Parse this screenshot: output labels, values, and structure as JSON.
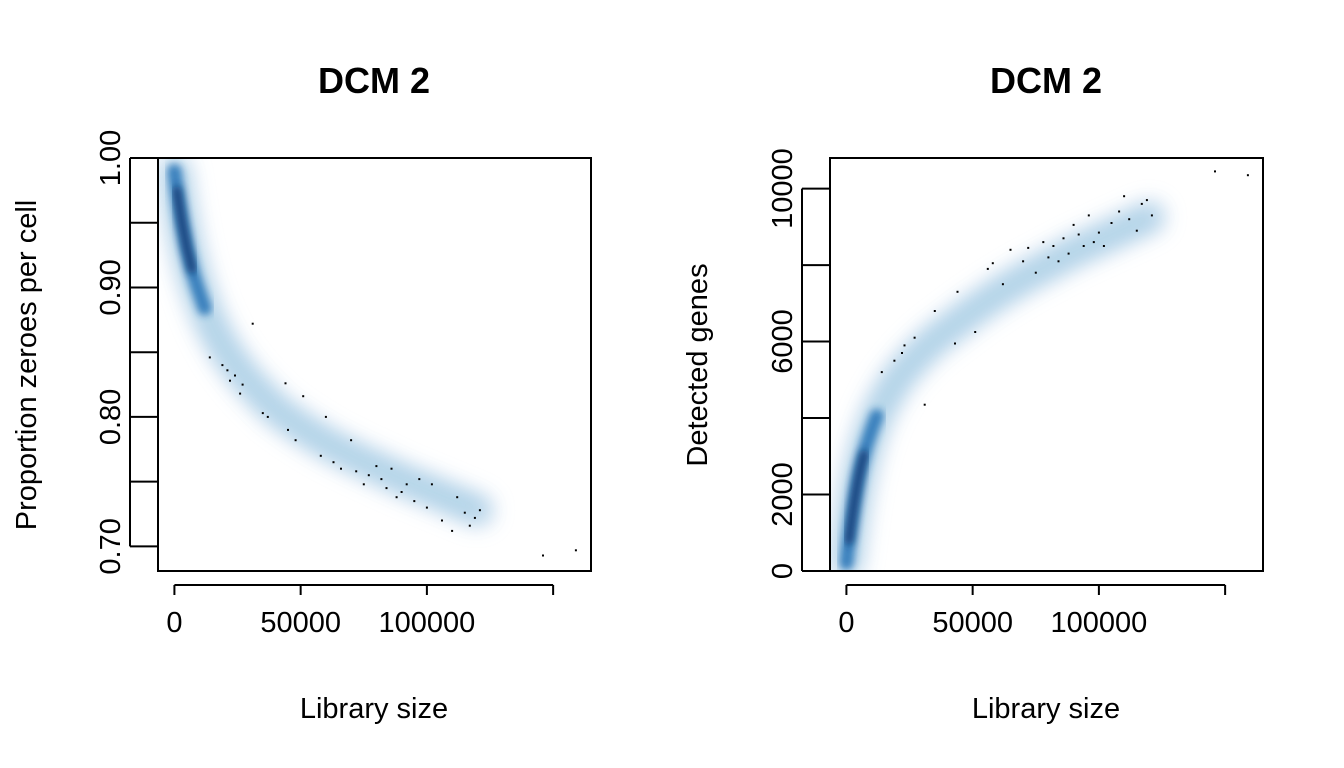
{
  "chart_data": [
    {
      "type": "scatter",
      "style": "smoothScatter",
      "title": "DCM 2",
      "xlabel": "Library size",
      "ylabel": "Proportion zeroes per cell",
      "xlim": [
        -6500,
        165000
      ],
      "ylim": [
        0.681,
        1.0
      ],
      "xticks": [
        0,
        50000,
        100000,
        150000
      ],
      "xtick_labels": [
        "0",
        "50000",
        "100000",
        ""
      ],
      "yticks": [
        0.7,
        0.75,
        0.8,
        0.85,
        0.9,
        0.95,
        1.0
      ],
      "ytick_labels": [
        "0.70",
        "",
        "0.80",
        "",
        "0.90",
        "",
        "1.00"
      ],
      "density_curve": {
        "x": [
          0,
          1000,
          2000,
          3000,
          4000,
          5000,
          6000,
          7000,
          8000,
          10000,
          12000,
          15000,
          20000,
          25000,
          30000,
          35000,
          40000,
          50000,
          60000,
          70000,
          80000,
          90000,
          100000,
          110000,
          120000
        ],
        "y": [
          0.99,
          0.975,
          0.962,
          0.95,
          0.94,
          0.93,
          0.922,
          0.914,
          0.907,
          0.895,
          0.884,
          0.87,
          0.852,
          0.838,
          0.826,
          0.816,
          0.806,
          0.792,
          0.78,
          0.77,
          0.761,
          0.752,
          0.744,
          0.736,
          0.728
        ]
      },
      "outliers": {
        "x": [
          31000,
          14000,
          19000,
          21000,
          24000,
          22000,
          27000,
          26000,
          35000,
          37000,
          44000,
          45000,
          48000,
          51000,
          58000,
          60000,
          63000,
          66000,
          70000,
          72000,
          75000,
          77000,
          80000,
          82000,
          84000,
          86000,
          88000,
          90000,
          92000,
          95000,
          97000,
          100000,
          102000,
          106000,
          110000,
          112000,
          115000,
          117000,
          119000,
          121000,
          146000,
          159000
        ],
        "y": [
          0.872,
          0.846,
          0.84,
          0.836,
          0.832,
          0.828,
          0.825,
          0.818,
          0.803,
          0.8,
          0.826,
          0.79,
          0.782,
          0.816,
          0.77,
          0.8,
          0.765,
          0.76,
          0.782,
          0.758,
          0.748,
          0.755,
          0.762,
          0.752,
          0.745,
          0.76,
          0.738,
          0.742,
          0.748,
          0.735,
          0.752,
          0.73,
          0.748,
          0.72,
          0.712,
          0.738,
          0.726,
          0.716,
          0.722,
          0.728,
          0.693,
          0.697
        ]
      }
    },
    {
      "type": "scatter",
      "style": "smoothScatter",
      "title": "DCM 2",
      "xlabel": "Library size",
      "ylabel": "Detected genes",
      "xlim": [
        -6500,
        165000
      ],
      "ylim": [
        0,
        10800
      ],
      "xticks": [
        0,
        50000,
        100000,
        150000
      ],
      "xtick_labels": [
        "0",
        "50000",
        "100000",
        ""
      ],
      "yticks": [
        0,
        2000,
        4000,
        6000,
        8000,
        10000
      ],
      "ytick_labels": [
        "0",
        "2000",
        "",
        "6000",
        "",
        "10000"
      ],
      "density_curve": {
        "x": [
          0,
          1000,
          2000,
          3000,
          4000,
          5000,
          6000,
          7000,
          8000,
          10000,
          12000,
          15000,
          20000,
          25000,
          30000,
          35000,
          40000,
          50000,
          60000,
          70000,
          80000,
          90000,
          100000,
          110000,
          120000
        ],
        "y": [
          200,
          800,
          1300,
          1750,
          2150,
          2500,
          2800,
          3050,
          3300,
          3700,
          4050,
          4450,
          5000,
          5400,
          5750,
          6050,
          6300,
          6800,
          7250,
          7650,
          8000,
          8350,
          8650,
          8950,
          9250
        ]
      },
      "outliers": {
        "x": [
          31000,
          14000,
          19000,
          22000,
          23000,
          27000,
          35000,
          43000,
          44000,
          51000,
          56000,
          58000,
          62000,
          65000,
          70000,
          72000,
          75000,
          78000,
          80000,
          82000,
          84000,
          86000,
          88000,
          90000,
          92000,
          94000,
          96000,
          98000,
          100000,
          102000,
          105000,
          108000,
          110000,
          112000,
          115000,
          117000,
          119000,
          121000,
          146000,
          159000
        ],
        "y": [
          4350,
          5200,
          5500,
          5700,
          5900,
          6100,
          6800,
          5950,
          7300,
          6250,
          7900,
          8050,
          7500,
          8400,
          8100,
          8450,
          7800,
          8600,
          8200,
          8500,
          8100,
          8700,
          8300,
          9050,
          8800,
          8500,
          9300,
          8600,
          8850,
          8500,
          9100,
          9400,
          9800,
          9200,
          8900,
          9600,
          9700,
          9300,
          10450,
          10350
        ]
      }
    }
  ]
}
